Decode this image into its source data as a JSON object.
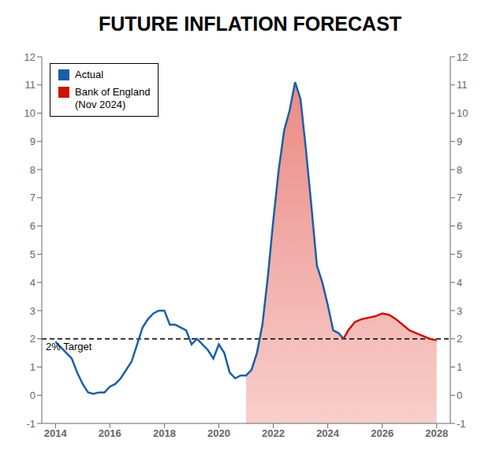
{
  "chart_data": {
    "type": "line",
    "title": "FUTURE INFLATION FORECAST",
    "series": [
      {
        "name": "Actual",
        "color": "#1a5fa8",
        "x": [
          2014.0,
          2014.2,
          2014.4,
          2014.6,
          2014.8,
          2015.0,
          2015.2,
          2015.4,
          2015.6,
          2015.8,
          2016.0,
          2016.2,
          2016.4,
          2016.6,
          2016.8,
          2017.0,
          2017.2,
          2017.4,
          2017.6,
          2017.8,
          2018.0,
          2018.2,
          2018.4,
          2018.6,
          2018.8,
          2019.0,
          2019.2,
          2019.4,
          2019.6,
          2019.8,
          2020.0,
          2020.2,
          2020.4,
          2020.6,
          2020.8,
          2021.0,
          2021.2,
          2021.4,
          2021.6,
          2021.8,
          2022.0,
          2022.2,
          2022.4,
          2022.6,
          2022.8,
          2023.0,
          2023.2,
          2023.4,
          2023.6,
          2023.8,
          2024.0,
          2024.2,
          2024.4,
          2024.58
        ],
        "values": [
          1.9,
          1.7,
          1.5,
          1.3,
          0.8,
          0.4,
          0.1,
          0.05,
          0.1,
          0.1,
          0.3,
          0.4,
          0.6,
          0.9,
          1.2,
          1.8,
          2.4,
          2.7,
          2.9,
          3.0,
          3.0,
          2.5,
          2.5,
          2.4,
          2.3,
          1.8,
          2.0,
          1.8,
          1.6,
          1.3,
          1.8,
          1.5,
          0.8,
          0.6,
          0.7,
          0.7,
          0.9,
          1.5,
          2.5,
          4.2,
          6.2,
          8.0,
          9.4,
          10.1,
          11.1,
          10.5,
          8.7,
          6.7,
          4.6,
          4.0,
          3.2,
          2.3,
          2.2,
          2.0
        ]
      },
      {
        "name": "Bank of England\n(Nov 2024)",
        "color": "#cc1100",
        "x": [
          2024.58,
          2024.75,
          2025.0,
          2025.25,
          2025.5,
          2025.75,
          2026.0,
          2026.25,
          2026.5,
          2026.75,
          2027.0,
          2027.25,
          2027.5,
          2027.75,
          2028.0
        ],
        "values": [
          2.0,
          2.3,
          2.6,
          2.7,
          2.75,
          2.8,
          2.9,
          2.85,
          2.7,
          2.5,
          2.3,
          2.2,
          2.1,
          2.0,
          1.95
        ]
      }
    ],
    "shaded_area": {
      "color": "#d91a0d",
      "x": [
        2021.0,
        2021.2,
        2021.4,
        2021.6,
        2021.8,
        2022.0,
        2022.2,
        2022.4,
        2022.6,
        2022.8,
        2023.0,
        2023.2,
        2023.4,
        2023.6,
        2023.8,
        2024.0,
        2024.2,
        2024.4,
        2024.58,
        2024.58,
        2024.75,
        2025.0,
        2025.25,
        2025.5,
        2025.75,
        2026.0,
        2026.25,
        2026.5,
        2026.75,
        2027.0,
        2027.25,
        2027.5,
        2027.75,
        2028.0
      ],
      "y": [
        0.7,
        0.9,
        1.5,
        2.5,
        4.2,
        6.2,
        8.0,
        9.4,
        10.1,
        11.1,
        10.5,
        8.7,
        6.7,
        4.6,
        4.0,
        3.2,
        2.3,
        2.2,
        2.0,
        2.0,
        2.3,
        2.6,
        2.7,
        2.75,
        2.8,
        2.9,
        2.85,
        2.7,
        2.5,
        2.3,
        2.2,
        2.1,
        2.0,
        1.95
      ]
    },
    "reference_line": {
      "y": 2.0,
      "label": "2% Target",
      "line_style": "dashed",
      "color": "#000000"
    },
    "xlim": [
      2013.5,
      2028.5
    ],
    "xticks": [
      2014,
      2016,
      2018,
      2020,
      2022,
      2024,
      2026,
      2028
    ],
    "ylim": [
      -1,
      12
    ],
    "yticks": [
      -1,
      0,
      1,
      2,
      3,
      4,
      5,
      6,
      7,
      8,
      9,
      10,
      11,
      12
    ],
    "y2lim": [
      -1,
      12
    ],
    "y2ticks": [
      -1,
      0,
      1,
      2,
      3,
      4,
      5,
      6,
      7,
      8,
      9,
      10,
      11,
      12
    ],
    "grid": false,
    "legend": "upper left"
  }
}
